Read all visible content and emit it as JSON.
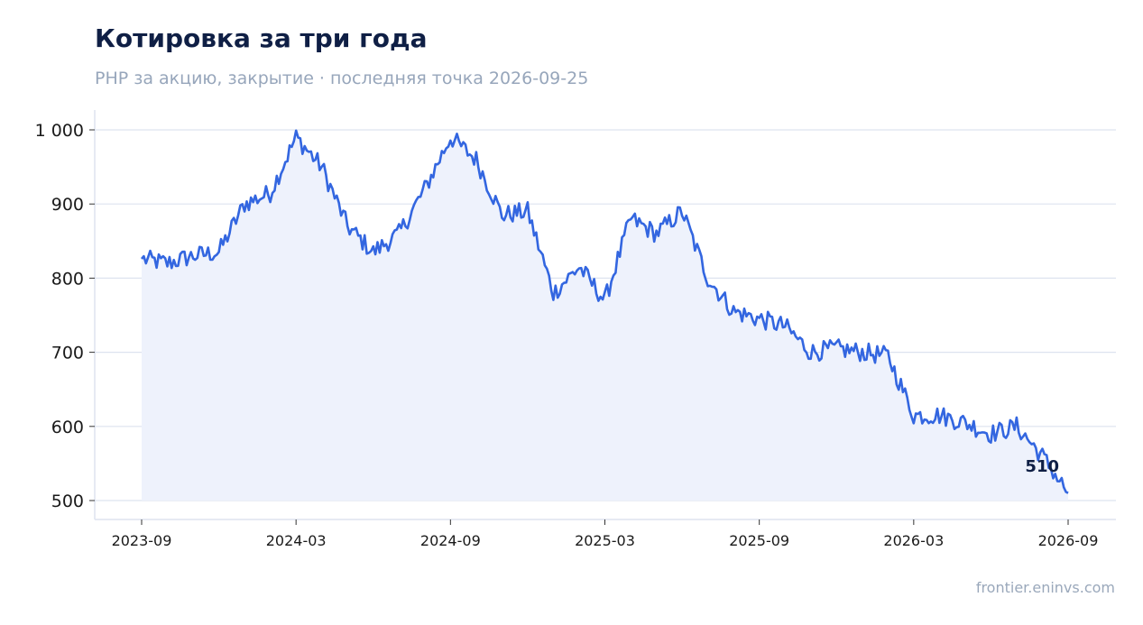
{
  "header": {
    "title": "Котировка за три года",
    "subtitle": "PHP за акцию, закрытие · последняя точка 2026-09-25"
  },
  "footer": {
    "source": "frontier.eninvs.com"
  },
  "colors": {
    "line": "#3366e0",
    "fill": "#eef2fc",
    "grid": "#dde3ef",
    "title": "#0f1f45",
    "muted": "#97a6bb"
  },
  "chart_data": {
    "type": "area",
    "x_unit": "month",
    "x": [
      "2023-09",
      "2023-10",
      "2023-11",
      "2023-12",
      "2024-01",
      "2024-02",
      "2024-03",
      "2024-04",
      "2024-05",
      "2024-06",
      "2024-07",
      "2024-08",
      "2024-09",
      "2024-10",
      "2024-11",
      "2024-12",
      "2025-01",
      "2025-02",
      "2025-03",
      "2025-04",
      "2025-05",
      "2025-06",
      "2025-07",
      "2025-08",
      "2025-09",
      "2025-10",
      "2025-11",
      "2025-12",
      "2026-01",
      "2026-02",
      "2026-03",
      "2026-04",
      "2026-05",
      "2026-06",
      "2026-07",
      "2026-08",
      "2026-09"
    ],
    "series": [
      {
        "values": [
          826,
          820,
          830,
          835,
          900,
          915,
          990,
          950,
          870,
          835,
          860,
          920,
          990,
          960,
          885,
          890,
          780,
          815,
          770,
          880,
          860,
          890,
          800,
          755,
          745,
          735,
          700,
          705,
          700,
          695,
          615,
          615,
          605,
          590,
          600,
          560,
          510
        ]
      }
    ],
    "ylim": [
      500,
      1000
    ],
    "yticks": [
      500,
      600,
      700,
      800,
      900,
      1000
    ],
    "ytick_labels": [
      "500",
      "600",
      "700",
      "800",
      "900",
      "1 000"
    ],
    "xticks": [
      "2023-09",
      "2024-03",
      "2024-09",
      "2025-03",
      "2025-09",
      "2026-03",
      "2026-09"
    ],
    "last_value_label": "510",
    "grid": "horizontal"
  }
}
